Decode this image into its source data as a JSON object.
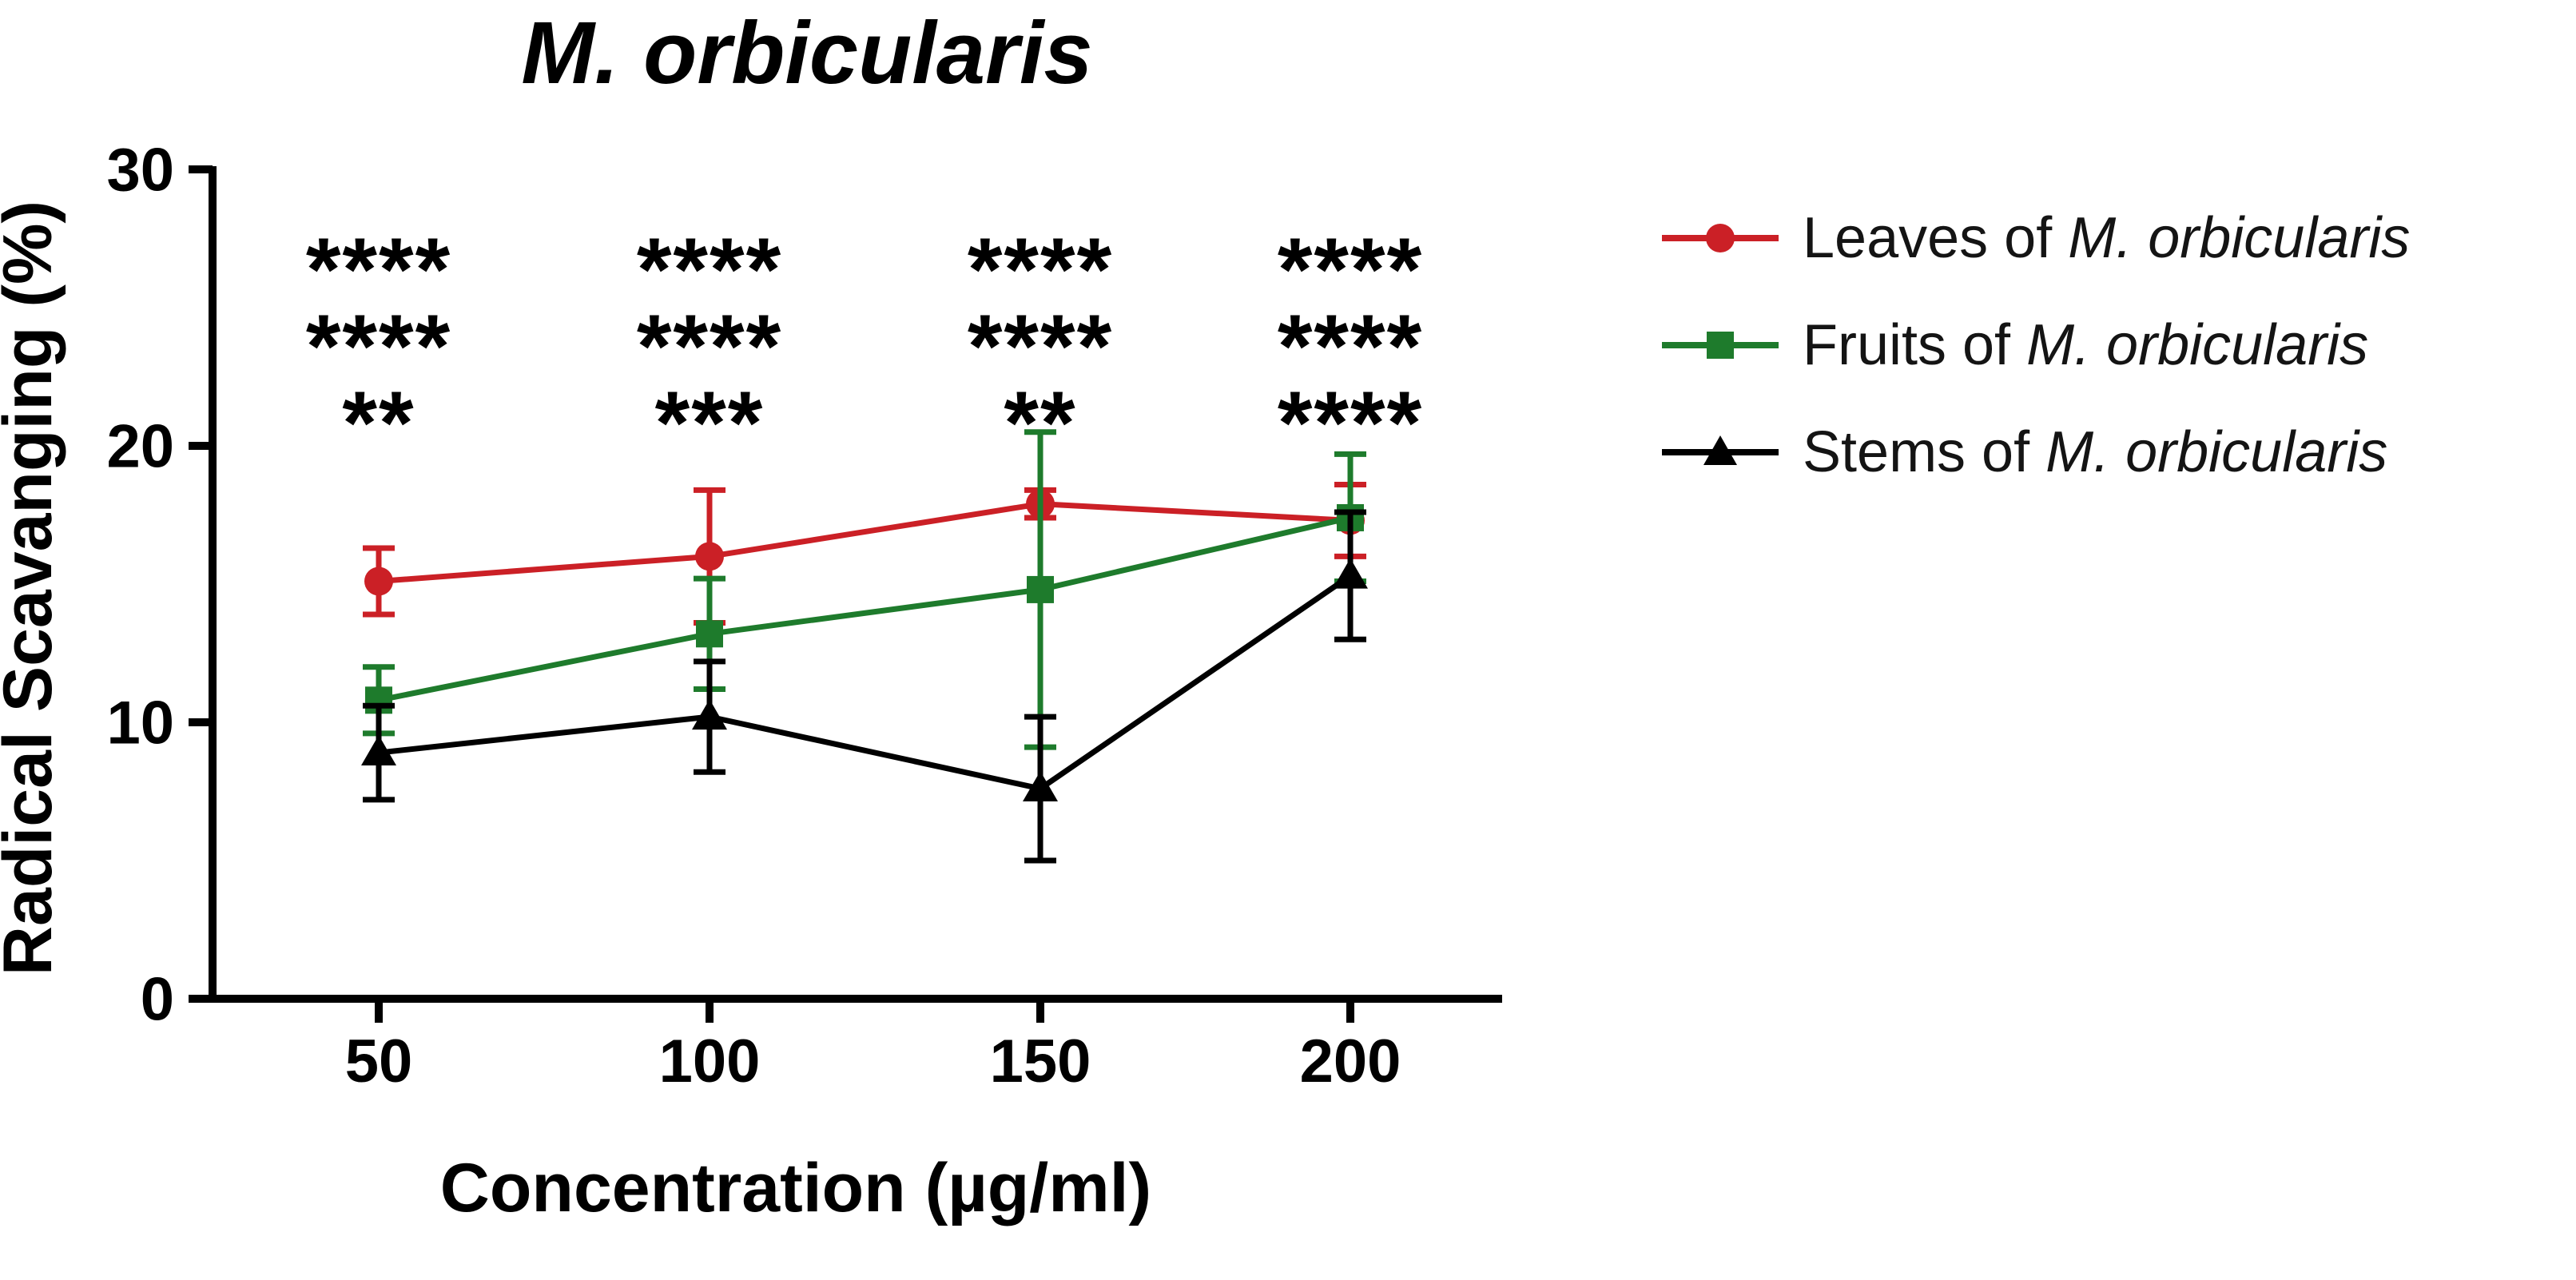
{
  "title": "M. orbicularis",
  "axes": {
    "y_label": "Radical Scavanging (%)",
    "x_label": "Concentration (µg/ml)"
  },
  "legend": {
    "items": [
      {
        "prefix": "Leaves of ",
        "species": "M. orbicularis",
        "marker": "circle",
        "color": "#CB2026"
      },
      {
        "prefix": "Fruits of ",
        "species": "M. orbicularis",
        "marker": "square",
        "color": "#1E7B2C"
      },
      {
        "prefix": "Stems of ",
        "species": "M. orbicularis",
        "marker": "triangle",
        "color": "#000000"
      }
    ]
  },
  "chart_data": {
    "type": "line",
    "title": "M. orbicularis",
    "xlabel": "Concentration (µg/ml)",
    "ylabel": "Radical Scavanging (%)",
    "x": [
      50,
      100,
      150,
      200
    ],
    "ylim": [
      0,
      30
    ],
    "yticks": [
      0,
      10,
      20,
      30
    ],
    "grid": false,
    "legend_position": "right",
    "series": [
      {
        "name": "Leaves of M. orbicularis",
        "marker": "circle",
        "color": "#CB2026",
        "values": [
          15.1,
          16.0,
          17.9,
          17.3
        ],
        "errors": [
          1.2,
          2.4,
          0.5,
          1.3
        ]
      },
      {
        "name": "Fruits of M. orbicularis",
        "marker": "square",
        "color": "#1E7B2C",
        "values": [
          10.8,
          13.2,
          14.8,
          17.4
        ],
        "errors": [
          1.2,
          2.0,
          5.7,
          2.3
        ]
      },
      {
        "name": "Stems of M. orbicularis",
        "marker": "triangle",
        "color": "#000000",
        "values": [
          8.9,
          10.2,
          7.6,
          15.3
        ],
        "errors": [
          1.7,
          2.0,
          2.6,
          2.3
        ]
      }
    ],
    "significance": [
      {
        "x": 50,
        "stars": [
          "****",
          "****",
          "**"
        ]
      },
      {
        "x": 100,
        "stars": [
          "****",
          "****",
          "***"
        ]
      },
      {
        "x": 150,
        "stars": [
          "****",
          "****",
          "**"
        ]
      },
      {
        "x": 200,
        "stars": [
          "****",
          "****",
          "****"
        ]
      }
    ],
    "star_colors": [
      "#B02021",
      "#1E7B2C",
      "#000000"
    ]
  }
}
